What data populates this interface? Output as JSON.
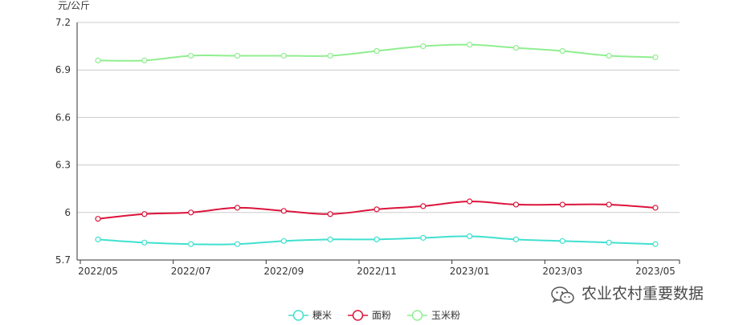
{
  "chart_data": {
    "type": "line",
    "title": "",
    "xlabel": "",
    "ylabel": "元/公斤",
    "x": [
      "2022/05",
      "2022/06",
      "2022/07",
      "2022/08",
      "2022/09",
      "2022/10",
      "2022/11",
      "2022/12",
      "2023/01",
      "2023/02",
      "2023/03",
      "2023/04",
      "2023/05"
    ],
    "x_tick_labels": [
      "2022/05",
      "2022/07",
      "2022/09",
      "2022/11",
      "2023/01",
      "2023/03",
      "2023/05"
    ],
    "ylim": [
      5.7,
      7.2
    ],
    "y_ticks": [
      5.7,
      6,
      6.3,
      6.6,
      6.9,
      7.2
    ],
    "y_tick_labels": [
      "5.7",
      "6",
      "6.3",
      "6.6",
      "6.9",
      "7.2"
    ],
    "grid": true,
    "smooth": true,
    "legend_position": "bottom-center",
    "series": [
      {
        "name": "粳米",
        "color": "#40e0d0",
        "values": [
          5.83,
          5.81,
          5.8,
          5.8,
          5.82,
          5.83,
          5.83,
          5.84,
          5.85,
          5.83,
          5.82,
          5.81,
          5.8
        ]
      },
      {
        "name": "面粉",
        "color": "#dc143c",
        "values": [
          5.96,
          5.99,
          6.0,
          6.03,
          6.01,
          5.99,
          6.02,
          6.04,
          6.07,
          6.05,
          6.05,
          6.05,
          6.03
        ]
      },
      {
        "name": "玉米粉",
        "color": "#90ee90",
        "values": [
          6.96,
          6.96,
          6.99,
          6.99,
          6.99,
          6.99,
          7.02,
          7.05,
          7.06,
          7.04,
          7.02,
          6.99,
          6.98
        ]
      }
    ]
  },
  "watermark": {
    "text": "农业农村重要数据",
    "icon": "wechat-logo-icon"
  }
}
